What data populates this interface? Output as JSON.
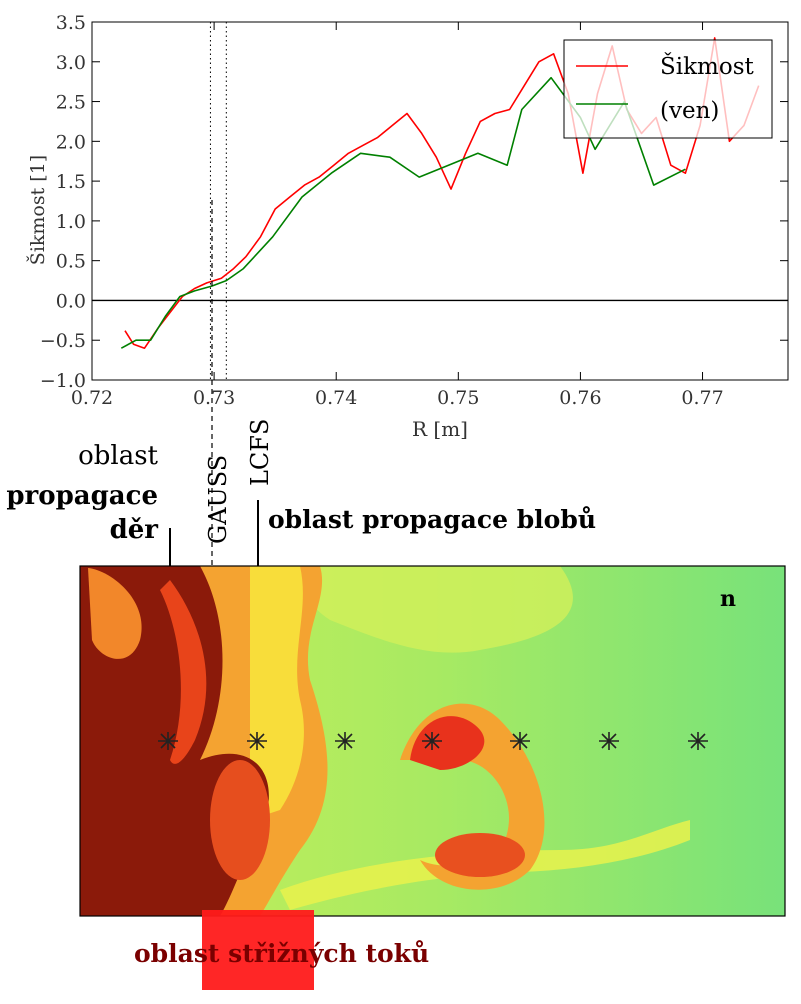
{
  "chart_data": {
    "type": "line",
    "xlabel": "R [m]",
    "ylabel": "Šikmost [1]",
    "xlim": [
      0.72,
      0.777
    ],
    "ylim": [
      -1.0,
      3.5
    ],
    "xticks": [
      0.72,
      0.73,
      0.74,
      0.75,
      0.76,
      0.77
    ],
    "xtick_labels": [
      "0.72",
      "0.73",
      "0.74",
      "0.75",
      "0.76",
      "0.77"
    ],
    "yticks": [
      -1.0,
      -0.5,
      0.0,
      0.5,
      1.0,
      1.5,
      2.0,
      2.5,
      3.0,
      3.5
    ],
    "ytick_labels": [
      "−1.0",
      "−0.5",
      "0.0",
      "0.5",
      "1.0",
      "1.5",
      "2.0",
      "2.5",
      "3.0",
      "3.5"
    ],
    "grid": false,
    "legend_position": "top-right",
    "series": [
      {
        "name": "Šikmost",
        "color": "#ff0000",
        "x": [
          0.7227,
          0.7234,
          0.7243,
          0.7254,
          0.7264,
          0.7274,
          0.7284,
          0.7294,
          0.7306,
          0.7316,
          0.7326,
          0.7338,
          0.735,
          0.7362,
          0.7374,
          0.7386,
          0.7398,
          0.741,
          0.7422,
          0.7434,
          0.7446,
          0.7458,
          0.747,
          0.7482,
          0.7494,
          0.7506,
          0.7518,
          0.753,
          0.7542,
          0.7554,
          0.7566,
          0.7578,
          0.759,
          0.7602,
          0.7614,
          0.7626,
          0.7638,
          0.765,
          0.7662,
          0.7674,
          0.7686,
          0.7698,
          0.771,
          0.7722,
          0.7734,
          0.7746
        ],
        "y": [
          -0.38,
          -0.55,
          -0.6,
          -0.35,
          -0.15,
          0.05,
          0.15,
          0.22,
          0.28,
          0.4,
          0.55,
          0.8,
          1.15,
          1.3,
          1.45,
          1.55,
          1.7,
          1.85,
          1.95,
          2.05,
          2.2,
          2.35,
          2.1,
          1.8,
          1.4,
          1.85,
          2.25,
          2.35,
          2.4,
          2.7,
          3.0,
          3.1,
          2.6,
          1.6,
          2.6,
          3.2,
          2.4,
          2.1,
          2.3,
          1.7,
          1.6,
          2.2,
          3.3,
          2.0,
          2.2,
          2.7
        ]
      },
      {
        "name": "(ven)",
        "color": "#008000",
        "x": [
          0.7224,
          0.7236,
          0.7248,
          0.726,
          0.7272,
          0.7284,
          0.7298,
          0.731,
          0.7324,
          0.7348,
          0.7372,
          0.7396,
          0.742,
          0.7444,
          0.7468,
          0.7492,
          0.7516,
          0.754,
          0.7552,
          0.7576,
          0.76,
          0.7612,
          0.7636,
          0.766,
          0.7686
        ],
        "y": [
          -0.6,
          -0.5,
          -0.5,
          -0.2,
          0.05,
          0.12,
          0.18,
          0.25,
          0.4,
          0.8,
          1.3,
          1.6,
          1.85,
          1.8,
          1.55,
          1.7,
          1.85,
          1.7,
          2.4,
          2.8,
          2.3,
          1.9,
          2.5,
          1.45,
          1.65
        ]
      }
    ],
    "vlines": [
      {
        "x": 0.7297,
        "style": "dotted"
      },
      {
        "x": 0.731,
        "style": "dotted"
      }
    ]
  },
  "annotations": {
    "gauss_label": "GAUSS",
    "lcfs_label": "LCFS",
    "holes_line1": "oblast",
    "holes_line2": "propagace",
    "holes_line3": "děr",
    "blobs_label": "oblast propagace blobů",
    "shear_label": "oblast střižných toků",
    "density_label": "n"
  },
  "colors": {
    "shear_region": "#ff1a1a",
    "shear_text": "#7a0000",
    "dark_red": "#8b1a0a",
    "green_bg": "#8fe06a"
  }
}
